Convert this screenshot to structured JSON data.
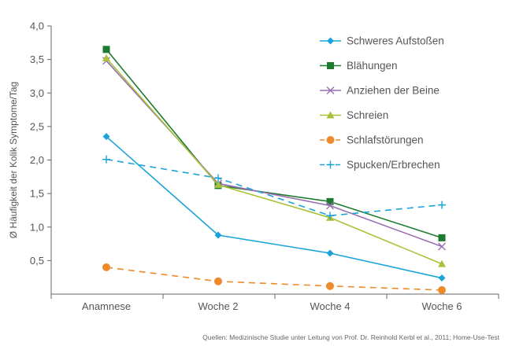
{
  "source_note": "Quellen: Medizinische Studie unter Leitung von Prof. Dr. Reinhold Kerbl et al., 2011; Home-Use-Test",
  "chart_data": {
    "type": "line",
    "title": "",
    "xlabel": "",
    "ylabel": "Ø Häufigkeit der Kolik Symptome/Tag",
    "categories": [
      "Anamnese",
      "Woche 2",
      "Woche 4",
      "Woche 6"
    ],
    "ylim": [
      0,
      4.0
    ],
    "yticks": [
      0.5,
      1.0,
      1.5,
      2.0,
      2.5,
      3.0,
      3.5,
      4.0
    ],
    "ytick_labels": [
      "0,5",
      "1,0",
      "1,5",
      "2,0",
      "2,5",
      "3,0",
      "3,5",
      "4,0"
    ],
    "grid": false,
    "legend_position": "top-right",
    "series": [
      {
        "name": "Schweres Aufstoßen",
        "values": [
          2.35,
          0.88,
          0.61,
          0.24
        ],
        "color": "#1aa3d9",
        "dash": "solid",
        "marker": "diamond"
      },
      {
        "name": "Blähungen",
        "values": [
          3.65,
          1.62,
          1.38,
          0.84
        ],
        "color": "#1d7a2f",
        "dash": "solid",
        "marker": "square"
      },
      {
        "name": "Anziehen der Beine",
        "values": [
          3.48,
          1.65,
          1.32,
          0.71
        ],
        "color": "#9a6fb0",
        "dash": "solid",
        "marker": "x"
      },
      {
        "name": "Schreien",
        "values": [
          3.52,
          1.63,
          1.14,
          0.45
        ],
        "color": "#a9c23a",
        "dash": "solid",
        "marker": "triangle"
      },
      {
        "name": "Schlafstörungen",
        "values": [
          0.4,
          0.19,
          0.12,
          0.06
        ],
        "color": "#ee8a2a",
        "dash": "dashed",
        "marker": "circle"
      },
      {
        "name": "Spucken/Erbrechen",
        "values": [
          2.01,
          1.73,
          1.17,
          1.33
        ],
        "color": "#1aa3d9",
        "dash": "dashed",
        "marker": "plus"
      }
    ]
  }
}
